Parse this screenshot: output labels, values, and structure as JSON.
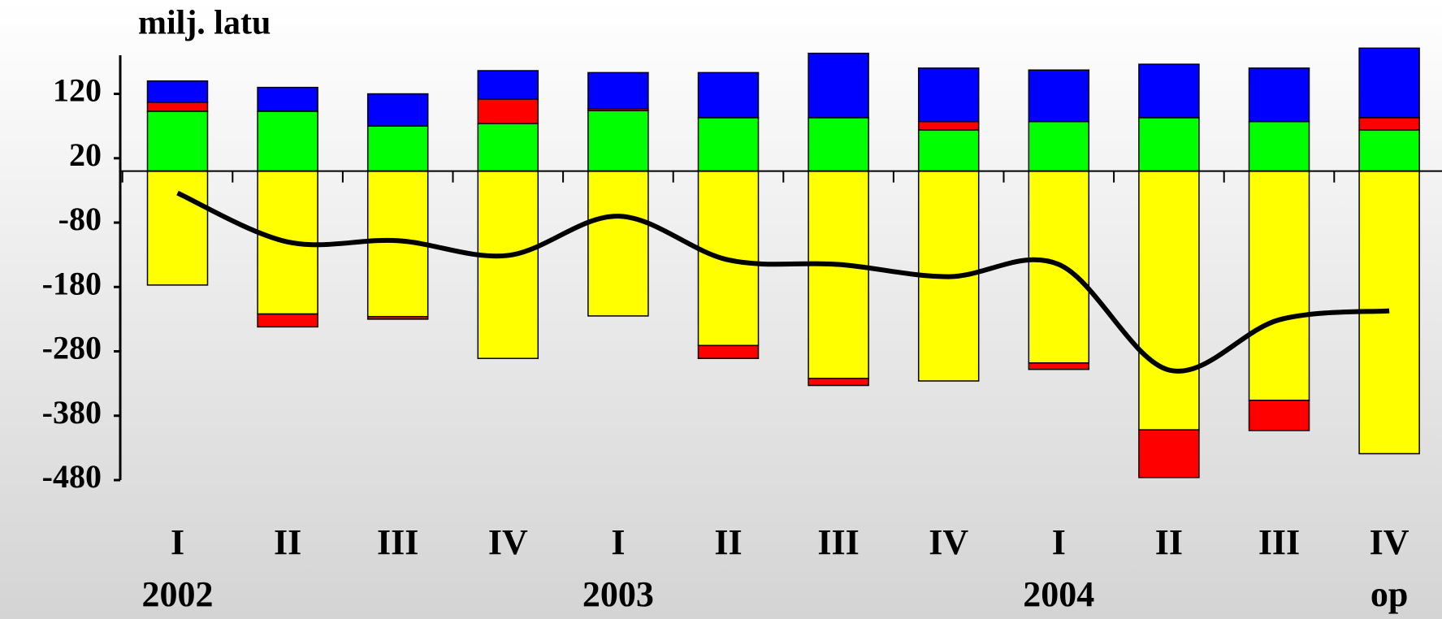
{
  "chart_data": {
    "type": "bar",
    "stacked": true,
    "title": "milj. latu",
    "categories": [
      "I",
      "II",
      "III",
      "IV",
      "I",
      "II",
      "III",
      "IV",
      "I",
      "II",
      "III",
      "IV"
    ],
    "year_labels": [
      "2002",
      null,
      null,
      null,
      "2003",
      null,
      null,
      null,
      "2004",
      null,
      null,
      "op"
    ],
    "series": [
      {
        "color": "#ffff00",
        "values": [
          -177,
          -222,
          -226,
          -291,
          -225,
          -271,
          -322,
          -326,
          -298,
          -402,
          -356,
          -439
        ]
      },
      {
        "color": "#00ff00",
        "values": [
          93,
          93,
          70,
          74,
          94,
          83,
          83,
          64,
          77,
          83,
          77,
          64
        ]
      },
      {
        "color": "#ff0000",
        "values": [
          14,
          -20,
          -4,
          38,
          3,
          -20,
          -11,
          13,
          -10,
          -74,
          -47,
          19
        ]
      },
      {
        "color": "#0000ff",
        "values": [
          33,
          37,
          50,
          44,
          56,
          70,
          100,
          83,
          80,
          83,
          83,
          108
        ]
      },
      {
        "color": "#000000",
        "type": "line",
        "values": [
          -34,
          -110,
          -108,
          -131,
          -70,
          -138,
          -145,
          -164,
          -145,
          -309,
          -231,
          -217
        ]
      }
    ],
    "ylim": [
      -480,
      180
    ],
    "yticks": [
      -480,
      -380,
      -280,
      -180,
      -80,
      20,
      120
    ]
  }
}
